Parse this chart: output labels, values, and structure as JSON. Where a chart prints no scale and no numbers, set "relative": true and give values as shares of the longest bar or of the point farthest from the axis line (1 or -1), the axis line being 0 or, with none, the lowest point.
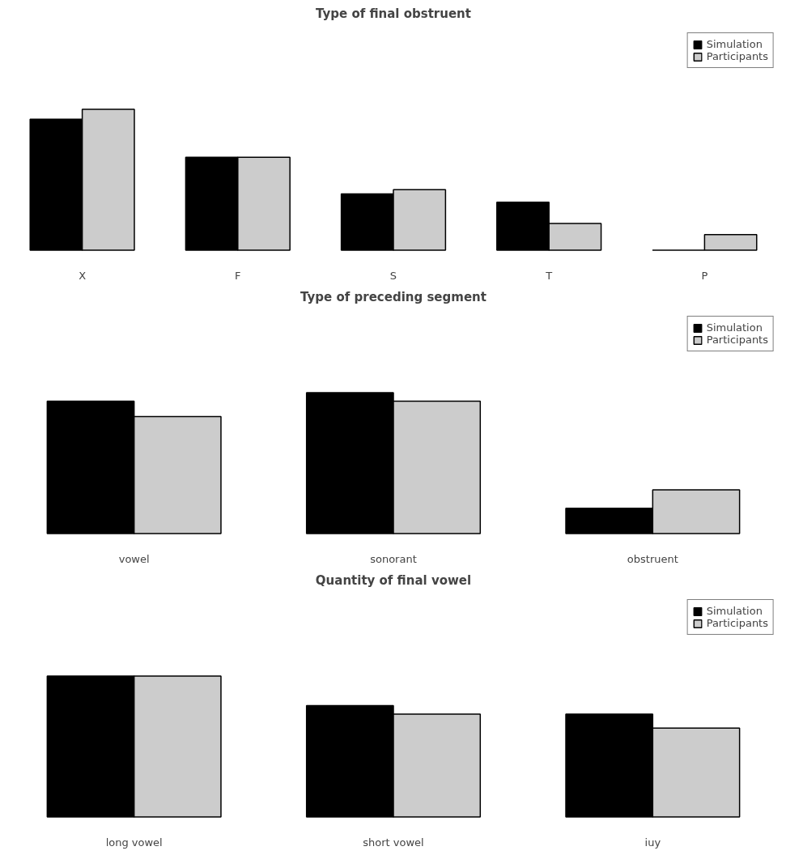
{
  "chart_data": [
    {
      "type": "bar",
      "title": "Type of final obstruent",
      "categories": [
        "X",
        "F",
        "S",
        "T",
        "P"
      ],
      "relative": true,
      "legend": "top right",
      "series": [
        {
          "name": "Simulation",
          "color": "#000000",
          "values": [
            0.93,
            0.66,
            0.4,
            0.34,
            0
          ]
        },
        {
          "name": "Participants",
          "color": "#cccccc",
          "values": [
            1,
            0.66,
            0.43,
            0.19,
            0.11
          ]
        }
      ]
    },
    {
      "type": "bar",
      "title": "Type of preceding segment",
      "categories": [
        "vowel",
        "sonorant",
        "obstruent"
      ],
      "relative": true,
      "legend": "top right",
      "series": [
        {
          "name": "Simulation",
          "color": "#000000",
          "values": [
            0.94,
            1,
            0.18
          ]
        },
        {
          "name": "Participants",
          "color": "#cccccc",
          "values": [
            0.83,
            0.94,
            0.31
          ]
        }
      ]
    },
    {
      "type": "bar",
      "title": "Quantity of final vowel",
      "categories": [
        "long vowel",
        "short vowel",
        "iuy"
      ],
      "relative": true,
      "legend": "top right",
      "series": [
        {
          "name": "Simulation",
          "color": "#000000",
          "values": [
            1,
            0.79,
            0.73
          ]
        },
        {
          "name": "Participants",
          "color": "#cccccc",
          "values": [
            1,
            0.73,
            0.63
          ]
        }
      ]
    }
  ]
}
